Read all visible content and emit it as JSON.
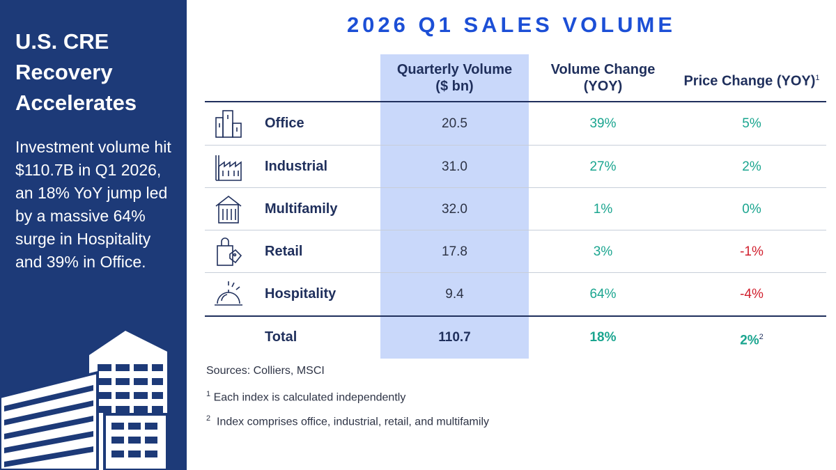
{
  "sidebar": {
    "title": "U.S. CRE Recovery Accelerates",
    "body": "Investment volume hit $110.7B in Q1 2026, an 18% YoY jump led by a massive 64% surge in Hospitality and 39% in Office."
  },
  "title": "2026 Q1 SALES VOLUME",
  "colors": {
    "sidebar_bg": "#1d3a78",
    "title": "#1c4fd6",
    "highlight": "#c9d8fa",
    "positive": "#1aa58f",
    "negative": "#d1202e"
  },
  "chart_data": {
    "type": "table",
    "columns": [
      {
        "label": "Quarterly Volume ($ bn)",
        "line1": "Quarterly Volume",
        "line2": "($ bn)"
      },
      {
        "label": "Volume Change (YOY)",
        "line1": "Volume Change",
        "line2": "(YOY)"
      },
      {
        "label": "Price Change (YOY)",
        "line1": "Price Change (YOY)",
        "footnote": "1"
      }
    ],
    "rows": [
      {
        "sector": "Office",
        "icon": "office-building-icon",
        "volume": "20.5",
        "volume_change": "39%",
        "price_change": "5%"
      },
      {
        "sector": "Industrial",
        "icon": "factory-icon",
        "volume": "31.0",
        "volume_change": "27%",
        "price_change": "2%"
      },
      {
        "sector": "Multifamily",
        "icon": "apartment-icon",
        "volume": "32.0",
        "volume_change": "1%",
        "price_change": "0%"
      },
      {
        "sector": "Retail",
        "icon": "shopping-bag-icon",
        "volume": "17.8",
        "volume_change": "3%",
        "price_change": "-1%"
      },
      {
        "sector": "Hospitality",
        "icon": "service-bell-icon",
        "volume": "9.4",
        "volume_change": "64%",
        "price_change": "-4%"
      }
    ],
    "total": {
      "label": "Total",
      "volume": "110.7",
      "volume_change": "18%",
      "price_change": "2%",
      "price_footnote": "2"
    },
    "sources": "Sources: Colliers, MSCI",
    "footnotes": [
      {
        "mark": "1",
        "text": "Each index is calculated independently"
      },
      {
        "mark": "2",
        "text": "Index comprises office, industrial, retail, and multifamily"
      }
    ]
  }
}
